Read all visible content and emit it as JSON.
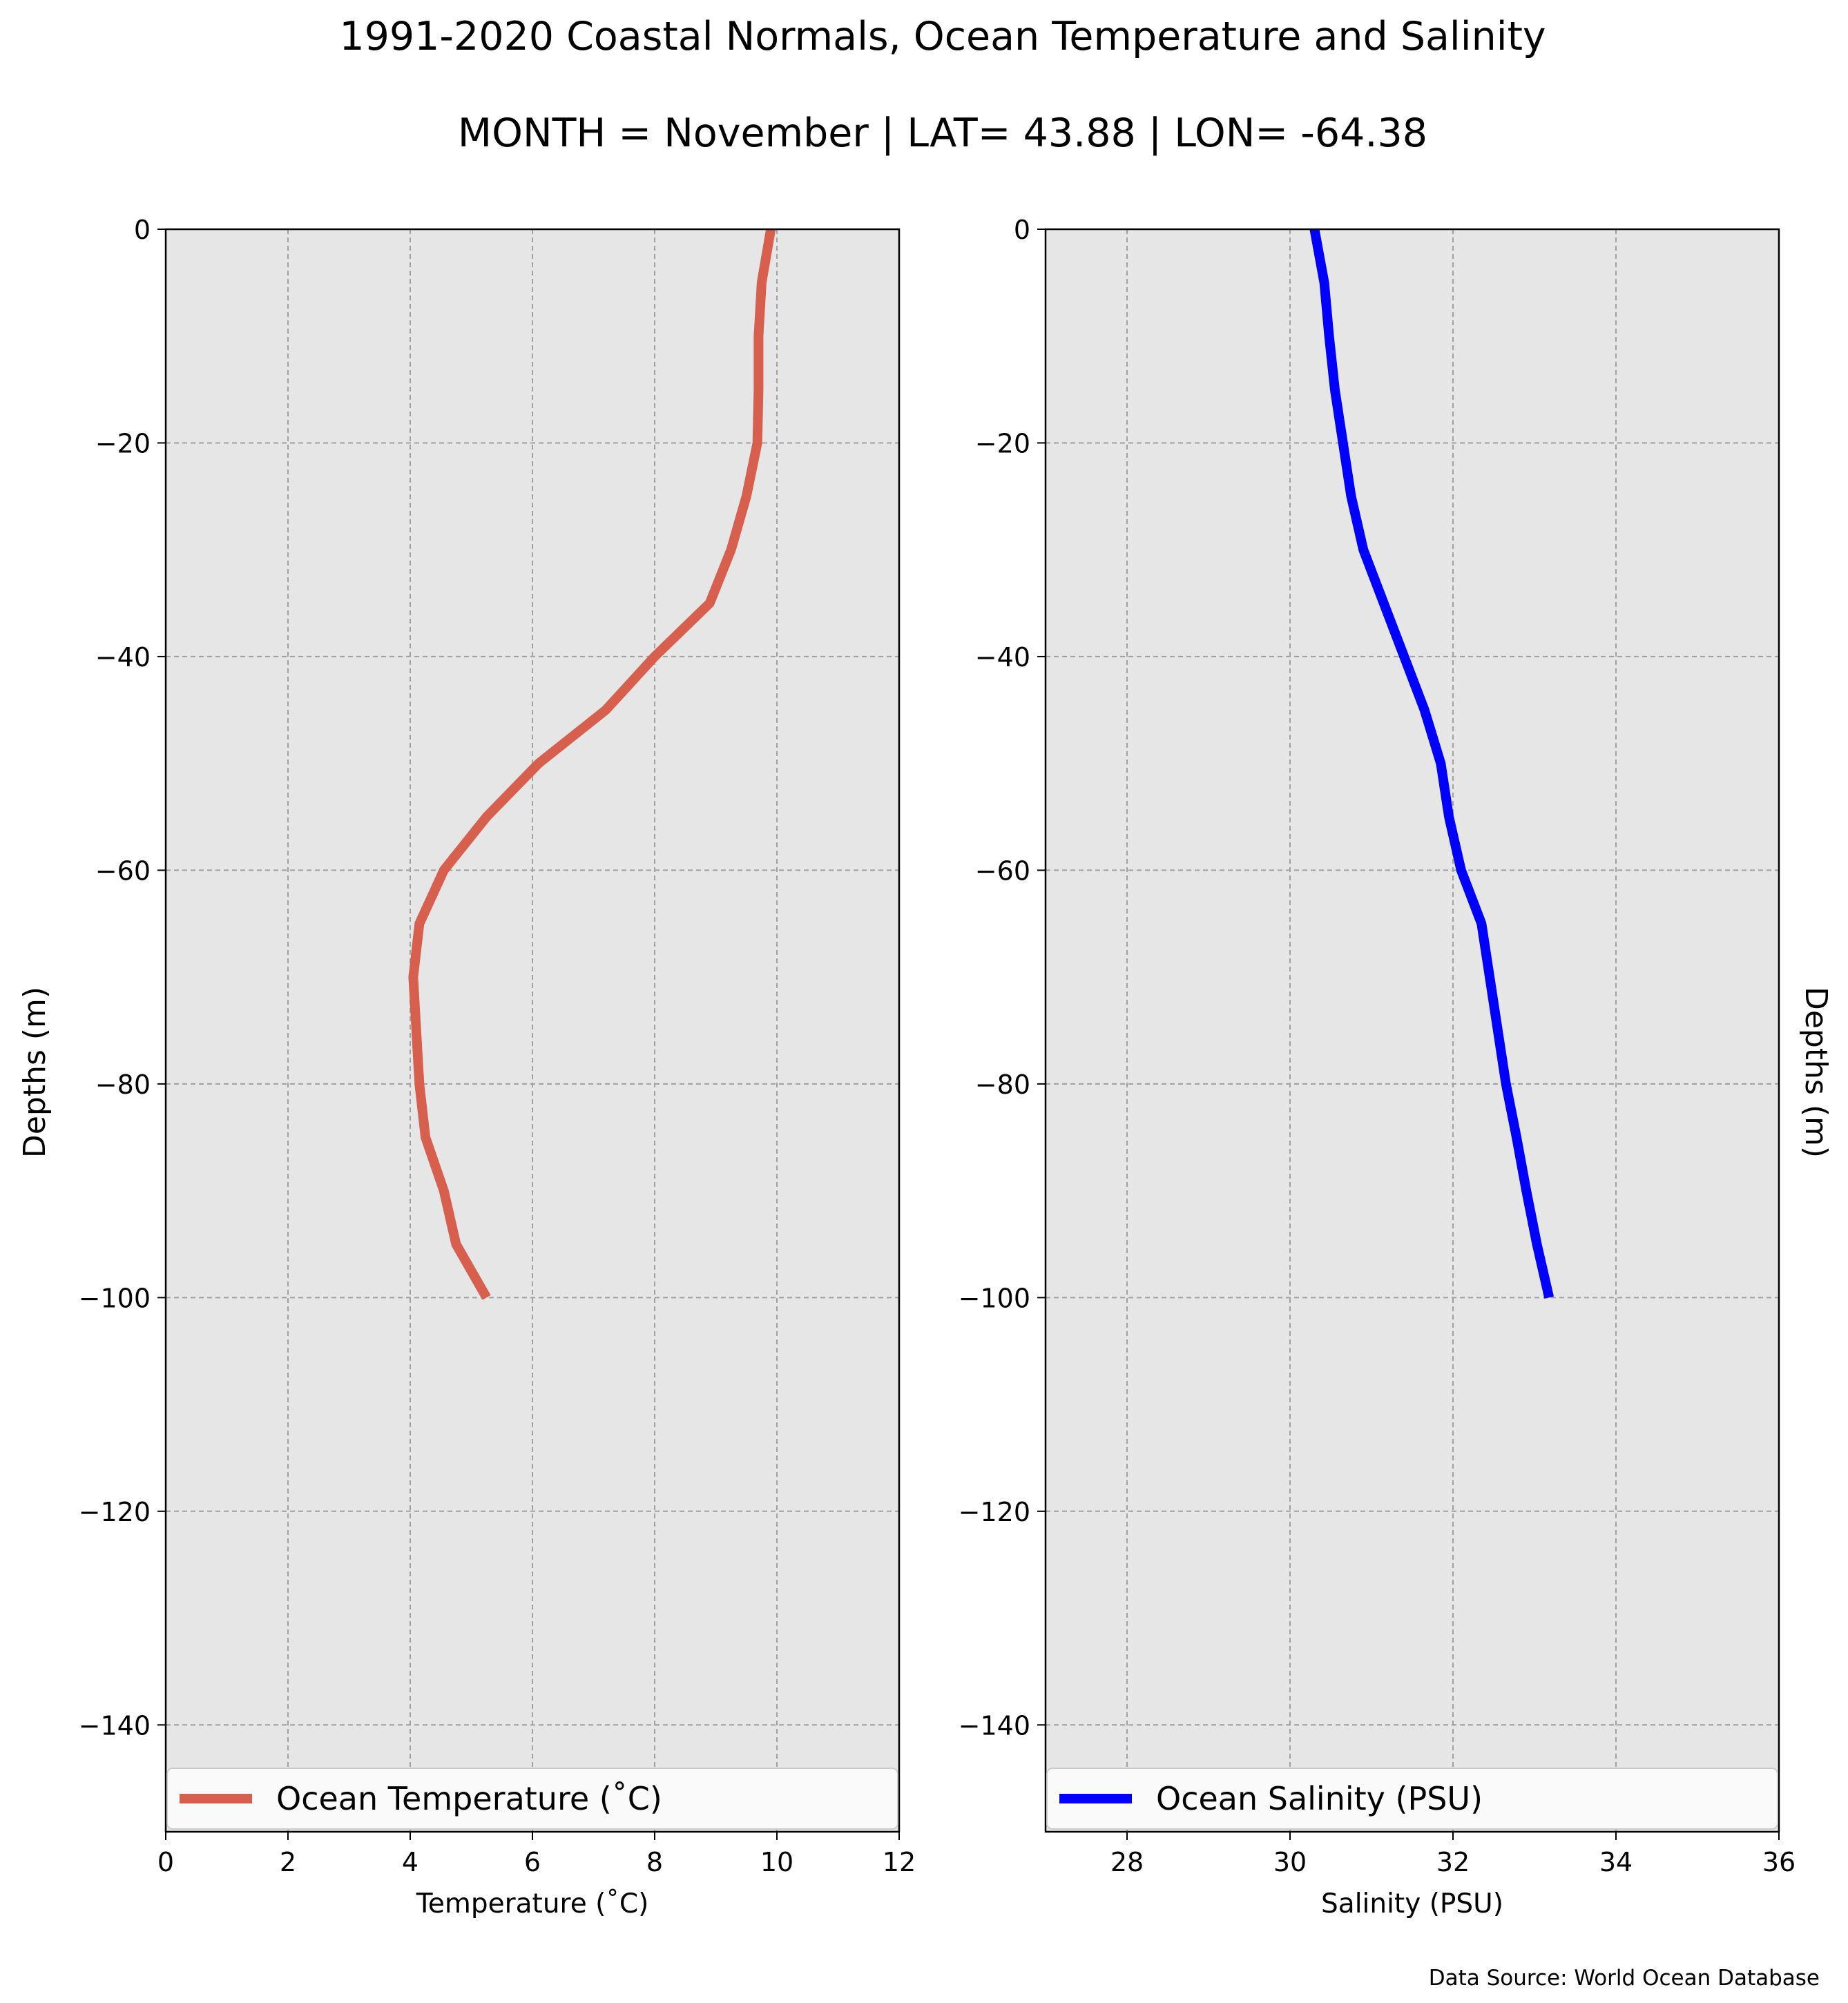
{
  "figure": {
    "title": "1991-2020 Coastal Normals, Ocean Temperature and Salinity",
    "subtitle": "MONTH = November | LAT= 43.88 | LON= -64.38",
    "source": "Data Source: World Ocean Database",
    "background": "#ffffff",
    "plot_background": "#e6e6e6",
    "grid_color": "#a0a0a0"
  },
  "chart_data": [
    {
      "type": "line",
      "title": "",
      "xlabel": "Temperature ($^\\circ$C)",
      "xlabel_display": "Temperature (˚C)",
      "ylabel": "Depths (m)",
      "xlim": [
        0,
        12
      ],
      "ylim": [
        -150,
        0
      ],
      "xticks": [
        0,
        2,
        4,
        6,
        8,
        10,
        12
      ],
      "xtick_labels": [
        "0",
        "2",
        "4",
        "6",
        "8",
        "10",
        "12"
      ],
      "yticks": [
        0,
        -20,
        -40,
        -60,
        -80,
        -100,
        -120,
        -140
      ],
      "ytick_labels": [
        "0",
        "−20",
        "−40",
        "−60",
        "−80",
        "−100",
        "−120",
        "−140"
      ],
      "grid": true,
      "legend_position": "bottom",
      "series": [
        {
          "name": "Ocean Temperature (˚C)",
          "color": "#d65f4e",
          "x": [
            9.9,
            9.75,
            9.7,
            9.7,
            9.68,
            9.5,
            9.25,
            8.9,
            8.0,
            7.2,
            6.1,
            5.25,
            4.55,
            4.15,
            4.05,
            4.1,
            4.15,
            4.25,
            4.55,
            4.75,
            5.25
          ],
          "y": [
            0,
            -5,
            -10,
            -15,
            -20,
            -25,
            -30,
            -35,
            -40,
            -45,
            -50,
            -55,
            -60,
            -65,
            -70,
            -75,
            -80,
            -85,
            -90,
            -95,
            -100
          ]
        }
      ]
    },
    {
      "type": "line",
      "title": "",
      "xlabel": "Salinity (PSU)",
      "ylabel": "Depths (m)",
      "xlim": [
        27,
        36
      ],
      "ylim": [
        -150,
        0
      ],
      "xticks": [
        28,
        30,
        32,
        34,
        36
      ],
      "xtick_labels": [
        "28",
        "30",
        "32",
        "34",
        "36"
      ],
      "yticks": [
        0,
        -20,
        -40,
        -60,
        -80,
        -100,
        -120,
        -140
      ],
      "ytick_labels": [
        "0",
        "−20",
        "−40",
        "−60",
        "−80",
        "−100",
        "−120",
        "−140"
      ],
      "grid": true,
      "legend_position": "bottom",
      "series": [
        {
          "name": "Ocean Salinity (PSU)",
          "color": "#0000ff",
          "x": [
            30.3,
            30.42,
            30.48,
            30.55,
            30.65,
            30.75,
            30.9,
            31.15,
            31.4,
            31.65,
            31.85,
            31.95,
            32.1,
            32.35,
            32.45,
            32.55,
            32.65,
            32.78,
            32.9,
            33.03,
            33.18
          ],
          "y": [
            0,
            -5,
            -10,
            -15,
            -20,
            -25,
            -30,
            -35,
            -40,
            -45,
            -50,
            -55,
            -60,
            -65,
            -70,
            -75,
            -80,
            -85,
            -90,
            -95,
            -100
          ]
        }
      ]
    }
  ]
}
